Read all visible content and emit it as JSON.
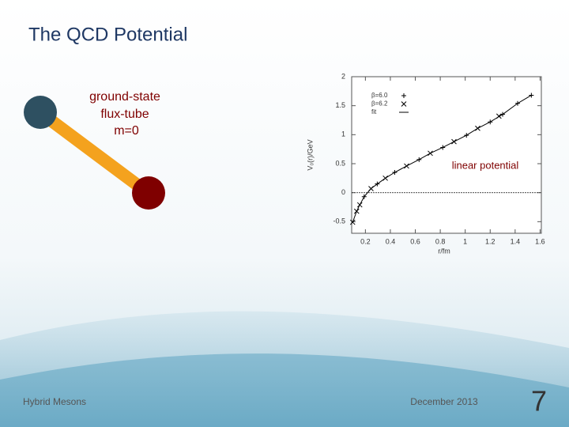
{
  "slide": {
    "title": "The QCD Potential",
    "annotations": [
      "ground-state",
      "flux-tube",
      "m=0"
    ],
    "callout": "linear potential",
    "footer_left": "Hybrid Mesons",
    "footer_center": "December 2013",
    "page_number": "7"
  },
  "chart_data": {
    "type": "scatter",
    "xlabel": "r/fm",
    "ylabel": "V₀(r)/GeV",
    "xlim": [
      0.09,
      1.61
    ],
    "ylim": [
      -0.7,
      2.0
    ],
    "xticks": [
      0.2,
      0.4,
      0.6,
      0.8,
      1,
      1.2,
      1.4,
      1.6
    ],
    "yticks": [
      -0.5,
      0,
      0.5,
      1,
      1.5,
      2
    ],
    "zero_line": 0,
    "series": [
      {
        "name": "β=6.0",
        "color": "#000000",
        "marker": "plus",
        "x": [
          0.19,
          0.295,
          0.435,
          0.63,
          0.82,
          1.01,
          1.2,
          1.3,
          1.42,
          1.53
        ],
        "values": [
          -0.07,
          0.15,
          0.35,
          0.57,
          0.78,
          0.99,
          1.22,
          1.35,
          1.54,
          1.68
        ]
      },
      {
        "name": "β=6.2",
        "color": "#000000",
        "marker": "cross",
        "x": [
          0.098,
          0.13,
          0.155,
          0.245,
          0.36,
          0.53,
          0.72,
          0.91,
          1.1,
          1.27
        ],
        "values": [
          -0.51,
          -0.32,
          -0.21,
          0.07,
          0.25,
          0.46,
          0.68,
          0.88,
          1.11,
          1.32
        ]
      },
      {
        "name": "fit",
        "color": "#000000",
        "marker": "line",
        "x": [
          0.098,
          0.13,
          0.155,
          0.19,
          0.245,
          0.295,
          0.36,
          0.435,
          0.53,
          0.63,
          0.72,
          0.82,
          0.91,
          1.01,
          1.1,
          1.2,
          1.3,
          1.42,
          1.53
        ],
        "values": [
          -0.51,
          -0.32,
          -0.21,
          -0.07,
          0.07,
          0.15,
          0.25,
          0.35,
          0.46,
          0.57,
          0.68,
          0.78,
          0.88,
          0.99,
          1.11,
          1.22,
          1.35,
          1.54,
          1.68
        ]
      }
    ]
  }
}
